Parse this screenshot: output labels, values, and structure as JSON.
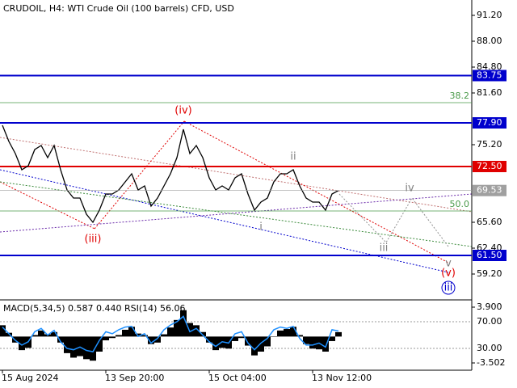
{
  "chart_data": [
    {
      "type": "line",
      "title": "CRUDOIL, H4:  WTI Crude Oil (100 barrels) CFD, USD",
      "color": "#000000",
      "categories": [
        "15 Aug 2024",
        null,
        null,
        null,
        null,
        null,
        null,
        null,
        null,
        null,
        null,
        null,
        null,
        null,
        null,
        null,
        "13 Sep 20:00",
        null,
        null,
        null,
        null,
        null,
        null,
        null,
        null,
        null,
        null,
        null,
        null,
        null,
        null,
        null,
        "15 Oct 04:00",
        null,
        null,
        null,
        null,
        null,
        null,
        null,
        null,
        null,
        null,
        null,
        null,
        null,
        null,
        null,
        "13 Nov 12:00",
        null,
        null,
        null,
        null
      ],
      "values": [
        77.6,
        75.6,
        74.1,
        72.1,
        72.6,
        74.6,
        75.1,
        73.6,
        75.1,
        72.1,
        69.6,
        68.6,
        68.6,
        66.6,
        65.6,
        67.1,
        69.1,
        69.1,
        69.6,
        70.6,
        71.6,
        69.6,
        70.1,
        67.6,
        68.6,
        70.1,
        71.6,
        73.6,
        77.1,
        74.1,
        75.1,
        73.6,
        71.1,
        69.6,
        70.1,
        69.6,
        71.1,
        71.6,
        69.1,
        67.1,
        68.1,
        68.6,
        70.6,
        71.6,
        71.6,
        72.1,
        70.1,
        68.6,
        68.1,
        68.1,
        67.1,
        69.1,
        69.53
      ],
      "ylim": [
        56.1,
        93.1
      ],
      "yticks": [
        {
          "value": 91.2,
          "label": "91.20"
        },
        {
          "value": 88,
          "label": "88.00"
        },
        {
          "value": 84.8,
          "label": "84.80"
        },
        {
          "value": 81.6,
          "label": "81.60"
        },
        {
          "value": 75.2,
          "label": "75.20"
        },
        {
          "value": 65.6,
          "label": "65.60"
        },
        {
          "value": 62.4,
          "label": "62.40"
        },
        {
          "value": 59.2,
          "label": "59.20"
        }
      ],
      "levels": [
        {
          "value": 83.75,
          "label": "83.75",
          "color": "#0000cd"
        },
        {
          "value": 77.9,
          "label": "77.90",
          "color": "#0000cd"
        },
        {
          "value": 72.5,
          "label": "72.50",
          "color": "#e00000"
        },
        {
          "value": 61.5,
          "label": "61.50",
          "color": "#0000cd"
        }
      ],
      "current_price": {
        "value": 69.53,
        "label": "69.53",
        "color": "#a0a0a0"
      },
      "fib_levels": [
        {
          "name": "38.2",
          "price": 80.4,
          "color": "#4a9a4a"
        },
        {
          "name": "50.0",
          "price": 67.0,
          "color": "#4a9a4a"
        }
      ],
      "annotations": [
        {
          "text": "(iv)",
          "x": 28,
          "y": 79.4,
          "color": "#e00000"
        },
        {
          "text": "(iii)",
          "x": 14,
          "y": 63.5,
          "color": "#e00000"
        },
        {
          "text": "ii",
          "x": 45,
          "y": 73.7,
          "color": "#808080"
        },
        {
          "text": "i",
          "x": 40,
          "y": 65.0,
          "color": "#808080"
        },
        {
          "text": "iv",
          "x": 63,
          "y": 69.8,
          "color": "#808080"
        },
        {
          "text": "iii",
          "x": 59,
          "y": 62.4,
          "color": "#808080"
        },
        {
          "text": "v",
          "x": 69,
          "y": 60.5,
          "color": "#808080"
        },
        {
          "text": "(v)",
          "x": 69,
          "y": 59.3,
          "color": "#e00000"
        },
        {
          "text": "iii",
          "x": 69,
          "y": 57.5,
          "color": "#0000cd"
        }
      ]
    },
    {
      "type": "macd",
      "title": "MACD(5,34,5) 0.587 0.440 RSI(14) 56.06",
      "series": [
        {
          "color": "#000000",
          "values": [
            1.5,
            0.5,
            -0.8,
            -1.8,
            -1.5,
            0.2,
            0.8,
            0.3,
            0.6,
            -0.8,
            -2.2,
            -2.8,
            -2.6,
            -3.0,
            -3.2,
            -2.0,
            -0.5,
            -0.2,
            0.2,
            0.9,
            1.3,
            0.4,
            0.2,
            -1.0,
            -0.8,
            0.3,
            1.2,
            2.2,
            3.5,
            1.8,
            1.5,
            0.6,
            -0.8,
            -1.8,
            -1.5,
            -1.6,
            -0.6,
            -0.2,
            -1.2,
            -2.5,
            -2.0,
            -1.3,
            0.0,
            0.8,
            1.0,
            1.3,
            0.2,
            -1.0,
            -1.6,
            -1.7,
            -2.0,
            -0.6,
            0.587
          ]
        },
        {
          "color": "#1e90ff",
          "axis": "y2",
          "values": [
            62,
            52,
            42,
            35,
            40,
            55,
            60,
            50,
            57,
            40,
            30,
            28,
            32,
            27,
            25,
            42,
            55,
            52,
            58,
            62,
            63,
            48,
            52,
            38,
            45,
            58,
            65,
            70,
            78,
            55,
            60,
            50,
            40,
            33,
            40,
            38,
            52,
            55,
            38,
            28,
            38,
            45,
            58,
            62,
            60,
            63,
            45,
            35,
            35,
            38,
            32,
            58,
            56.06
          ]
        }
      ],
      "ylim": [
        -3.502,
        3.9
      ],
      "yticks": [
        {
          "value": 3.9,
          "label": "3.900"
        },
        {
          "value": -3.502,
          "label": "-3.502"
        }
      ],
      "y2lim": [
        8.2,
        91.8
      ],
      "y2ticks": [
        {
          "value": 70,
          "label": "70.00"
        },
        {
          "value": 30,
          "label": "30.00"
        }
      ]
    }
  ]
}
